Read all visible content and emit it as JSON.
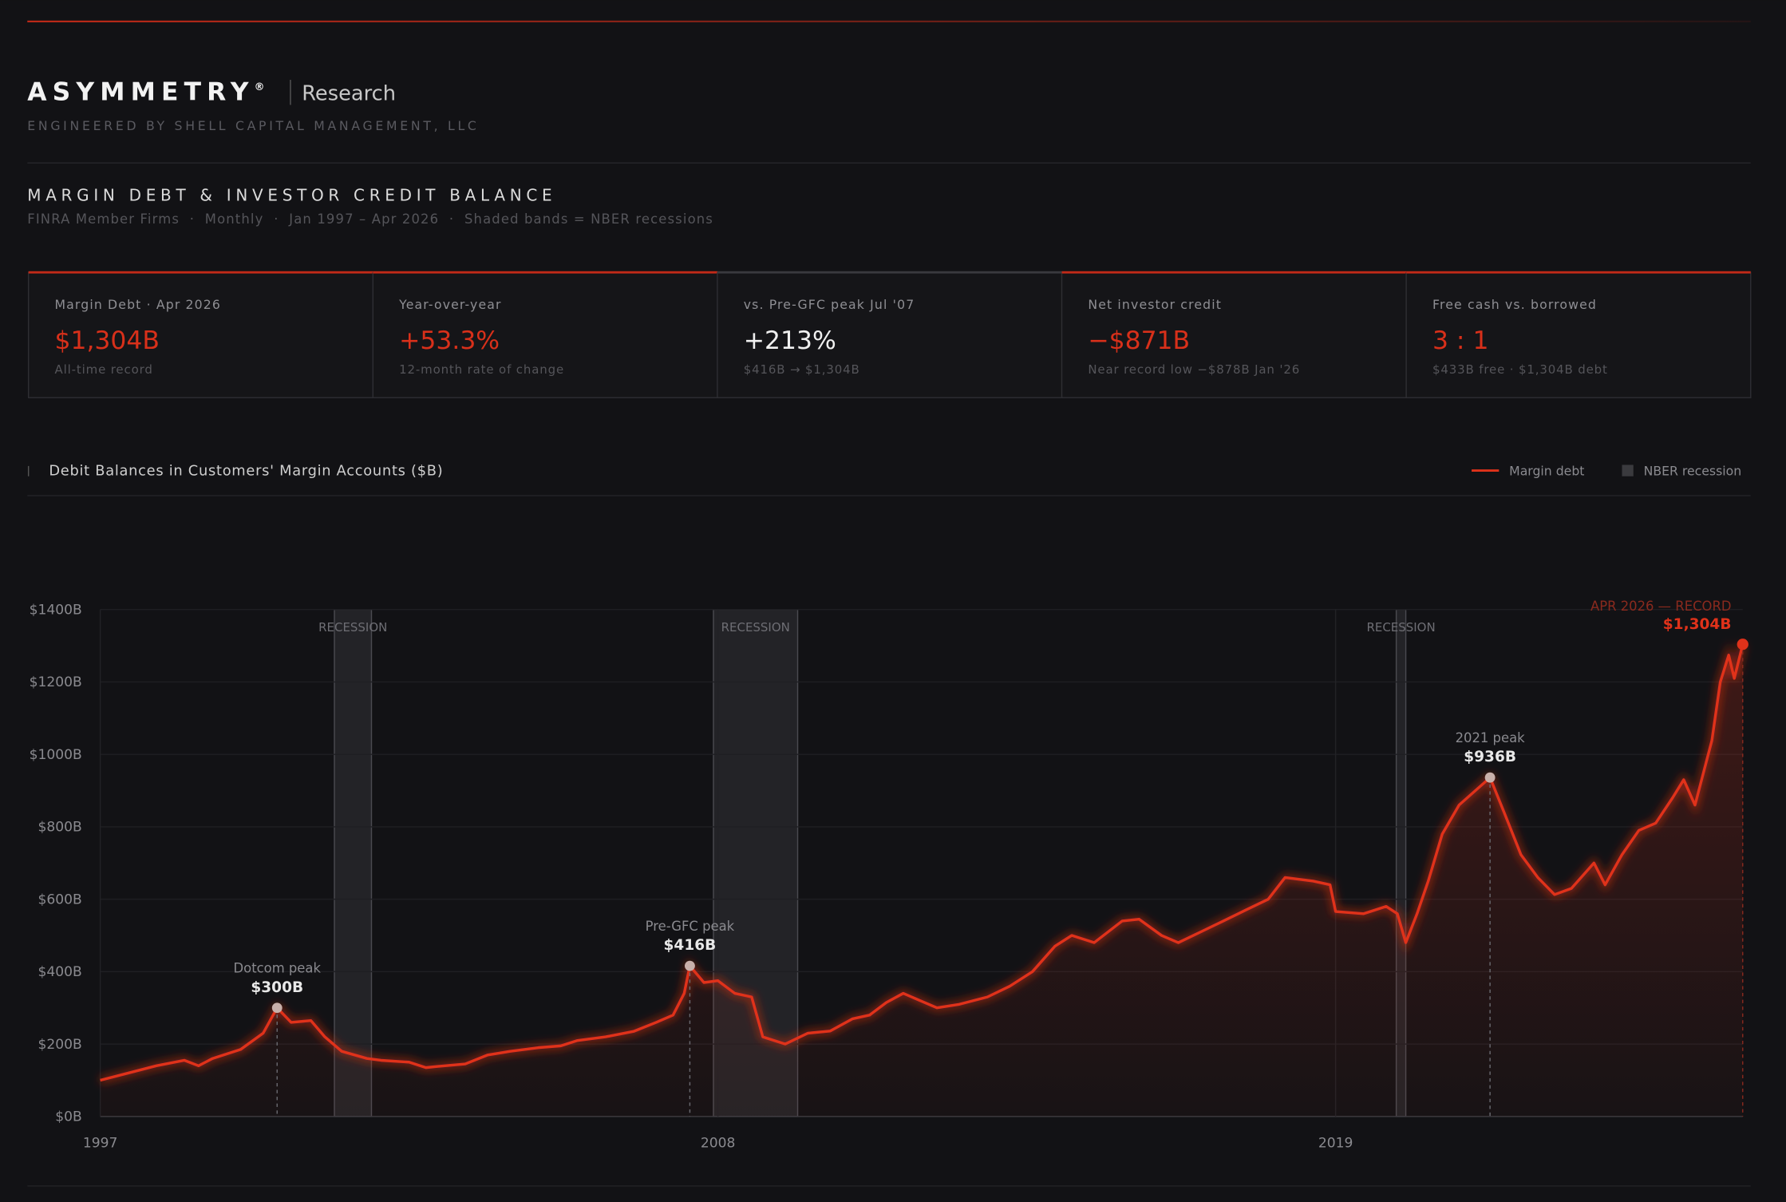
{
  "header": {
    "brand": "ASYMMETRY",
    "brand_mark": "®",
    "brand_sub": "Research",
    "tagline": "ENGINEERED BY SHELL CAPITAL MANAGEMENT, LLC",
    "title": "MARGIN DEBT & INVESTOR CREDIT BALANCE",
    "subtitle": "FINRA Member Firms  ·  Monthly  ·  Jan 1997 – Apr 2026  ·  Shaded bands = NBER recessions"
  },
  "cards": [
    {
      "label": "Margin Debt · Apr 2026",
      "value": "$1,304B",
      "note": "All-time record",
      "color": "#d8301a",
      "accent": true
    },
    {
      "label": "Year-over-year",
      "value": "+53.3%",
      "note": "12-month rate of change",
      "color": "#d8301a",
      "accent": true
    },
    {
      "label": "vs. Pre-GFC peak Jul '07",
      "value": "+213%",
      "note": "$416B → $1,304B",
      "color": "#f0f0f0",
      "accent": false
    },
    {
      "label": "Net investor credit",
      "value": "−$871B",
      "note": "Near record low −$878B Jan '26",
      "color": "#d8301a",
      "accent": true
    },
    {
      "label": "Free cash vs. borrowed",
      "value": "3 : 1",
      "note": "$433B free · $1,304B debt",
      "color": "#d8301a",
      "accent": true
    }
  ],
  "chart_data": {
    "type": "line",
    "title": "Debit Balances in Customers' Margin Accounts ($B)",
    "x": [
      1997.0,
      1997.5,
      1998.0,
      1998.5,
      1998.75,
      1999.0,
      1999.5,
      1999.9,
      2000.15,
      2000.4,
      2000.75,
      2001.0,
      2001.3,
      2001.75,
      2002.0,
      2002.5,
      2002.8,
      2003.0,
      2003.5,
      2003.9,
      2004.3,
      2004.8,
      2005.2,
      2005.5,
      2006.0,
      2006.5,
      2006.9,
      2007.2,
      2007.4,
      2007.5,
      2007.75,
      2008.0,
      2008.3,
      2008.6,
      2008.8,
      2009.2,
      2009.6,
      2010.0,
      2010.4,
      2010.7,
      2011.0,
      2011.3,
      2011.6,
      2011.9,
      2012.3,
      2012.8,
      2013.2,
      2013.6,
      2014.0,
      2014.3,
      2014.7,
      2015.2,
      2015.5,
      2015.9,
      2016.2,
      2016.6,
      2017.0,
      2017.4,
      2017.8,
      2018.1,
      2018.6,
      2018.9,
      2019.0,
      2019.5,
      2019.9,
      2020.1,
      2020.25,
      2020.45,
      2020.65,
      2020.9,
      2021.2,
      2021.75,
      2022.0,
      2022.3,
      2022.6,
      2022.9,
      2023.2,
      2023.6,
      2023.8,
      2024.1,
      2024.4,
      2024.7,
      2025.0,
      2025.2,
      2025.4,
      2025.7,
      2025.85,
      2026.0,
      2026.1,
      2026.25
    ],
    "series": [
      {
        "name": "Margin debt",
        "color": "#e0321a",
        "values": [
          100,
          120,
          140,
          155,
          140,
          160,
          185,
          230,
          300,
          260,
          265,
          220,
          180,
          160,
          155,
          150,
          135,
          138,
          145,
          170,
          180,
          190,
          195,
          210,
          220,
          235,
          260,
          280,
          340,
          416,
          370,
          375,
          340,
          330,
          220,
          200,
          230,
          236,
          270,
          280,
          315,
          340,
          320,
          300,
          310,
          330,
          360,
          400,
          470,
          500,
          480,
          540,
          545,
          500,
          480,
          510,
          540,
          570,
          600,
          660,
          650,
          640,
          566,
          560,
          580,
          560,
          480,
          560,
          650,
          780,
          860,
          936,
          840,
          723,
          660,
          613,
          630,
          700,
          640,
          723,
          790,
          810,
          880,
          930,
          860,
          1038,
          1200,
          1274,
          1210,
          1304
        ]
      }
    ],
    "xlim": [
      1997,
      2026.25
    ],
    "xticks": [
      1997,
      2008,
      2019
    ],
    "ylim": [
      0,
      1400
    ],
    "yticks": [
      {
        "value": 0,
        "label": "$0B"
      },
      {
        "value": 200,
        "label": "$200B"
      },
      {
        "value": 400,
        "label": "$400B"
      },
      {
        "value": 600,
        "label": "$600B"
      },
      {
        "value": 800,
        "label": "$800B"
      },
      {
        "value": 1000,
        "label": "$1000B"
      },
      {
        "value": 1200,
        "label": "$1200B"
      },
      {
        "value": 1400,
        "label": "$1400B"
      }
    ],
    "grid": true,
    "recession_legend": "NBER recession",
    "recession_color": "#3a3a3e",
    "recessions": [
      {
        "start": 2001.17,
        "end": 2001.83,
        "label": "RECESSION"
      },
      {
        "start": 2007.92,
        "end": 2009.42,
        "label": "RECESSION"
      },
      {
        "start": 2020.08,
        "end": 2020.25,
        "label": "RECESSION"
      }
    ],
    "annotations": [
      {
        "label": "Dotcom peak",
        "x": 2000.15,
        "value": 300,
        "value_label": "$300B"
      },
      {
        "label": "Pre-GFC peak",
        "x": 2007.5,
        "value": 416,
        "value_label": "$416B"
      },
      {
        "label": "2021 peak",
        "x": 2021.75,
        "value": 936,
        "value_label": "$936B"
      }
    ],
    "record": {
      "label": "APR 2026 — RECORD",
      "x": 2026.25,
      "value": 1304,
      "value_label": "$1,304B"
    }
  }
}
